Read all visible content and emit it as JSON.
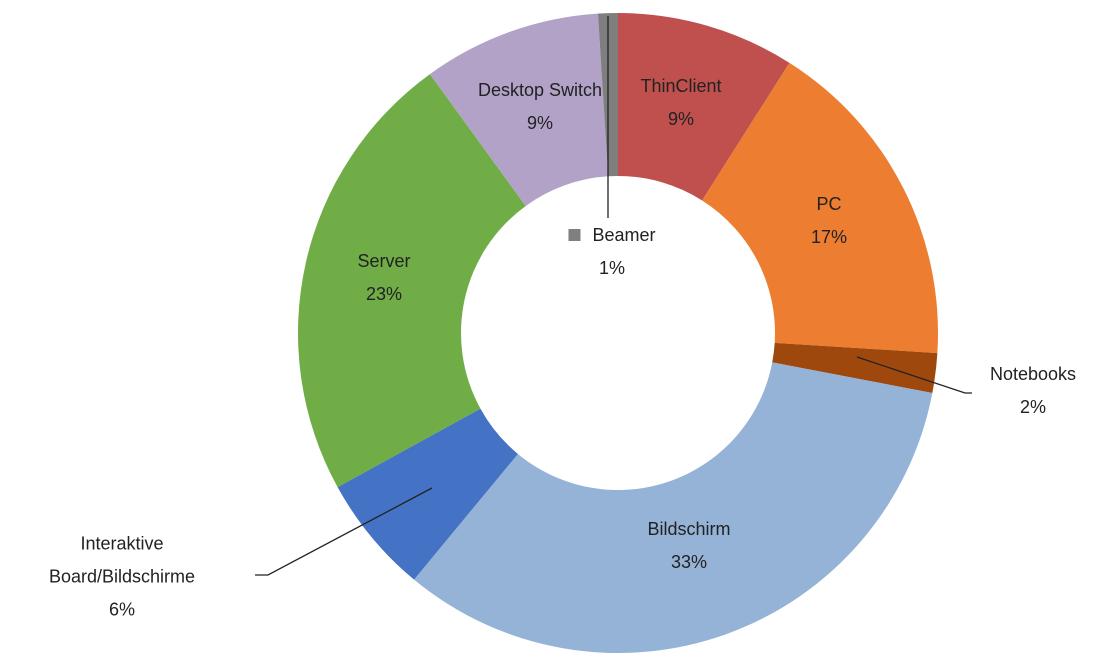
{
  "chart_data": {
    "type": "donut",
    "categories": [
      "ThinClient",
      "PC",
      "Notebooks",
      "Bildschirm",
      "Interaktive Board/Bildschirme",
      "Server",
      "Desktop Switch",
      "Beamer"
    ],
    "values": [
      9,
      17,
      2,
      33,
      6,
      23,
      9,
      1
    ],
    "value_labels": [
      "9%",
      "17%",
      "2%",
      "33%",
      "6%",
      "23%",
      "9%",
      "1%"
    ],
    "colors": [
      "#c0504d",
      "#ed7d31",
      "#9e480e",
      "#95b3d7",
      "#4472c4",
      "#70ad47",
      "#b3a2c7",
      "#7f7f7f"
    ]
  }
}
